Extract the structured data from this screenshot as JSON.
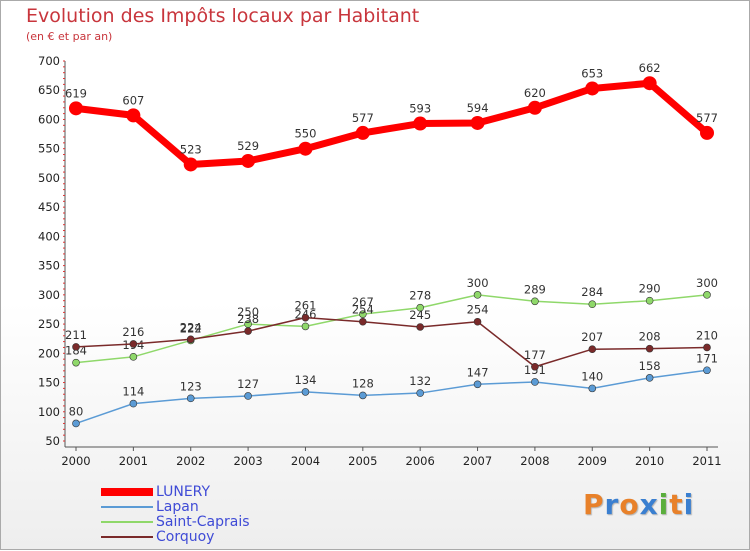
{
  "title": "Evolution des Impôts locaux par Habitant",
  "subtitle": "(en € et par an)",
  "logo": {
    "chars": [
      "P",
      "r",
      "o",
      "x",
      "i",
      "t",
      "i"
    ],
    "colors": [
      "#e8812a",
      "#3a7fd0",
      "#e8812a",
      "#3a7fd0",
      "#5aae3c",
      "#e8812a",
      "#3a7fd0"
    ]
  },
  "chart_data": {
    "type": "line",
    "title": "Evolution des Impôts locaux par Habitant",
    "ylabel": "(en € et par an)",
    "xlabel": "",
    "categories": [
      "2000",
      "2001",
      "2002",
      "2003",
      "2004",
      "2005",
      "2006",
      "2007",
      "2008",
      "2009",
      "2010",
      "2011"
    ],
    "ylim": [
      50,
      700
    ],
    "yticks": [
      50,
      100,
      150,
      200,
      250,
      300,
      350,
      400,
      450,
      500,
      550,
      600,
      650,
      700
    ],
    "grid": false,
    "legend_position": "bottom-left",
    "series": [
      {
        "name": "LUNERY",
        "color": "#ff0000",
        "emphasis": true,
        "values": [
          619,
          607,
          523,
          529,
          550,
          577,
          593,
          594,
          620,
          653,
          662,
          577
        ]
      },
      {
        "name": "Lapan",
        "color": "#5b9bd5",
        "emphasis": false,
        "values": [
          80,
          114,
          123,
          127,
          134,
          128,
          132,
          147,
          151,
          140,
          158,
          171
        ]
      },
      {
        "name": "Saint-Caprais",
        "color": "#8fd86a",
        "emphasis": false,
        "values": [
          184,
          194,
          222,
          250,
          246,
          267,
          278,
          300,
          289,
          284,
          290,
          300
        ]
      },
      {
        "name": "Corquoy",
        "color": "#7a2a2a",
        "emphasis": false,
        "values": [
          211,
          216,
          224,
          238,
          261,
          254,
          245,
          254,
          177,
          207,
          208,
          210
        ]
      }
    ]
  }
}
